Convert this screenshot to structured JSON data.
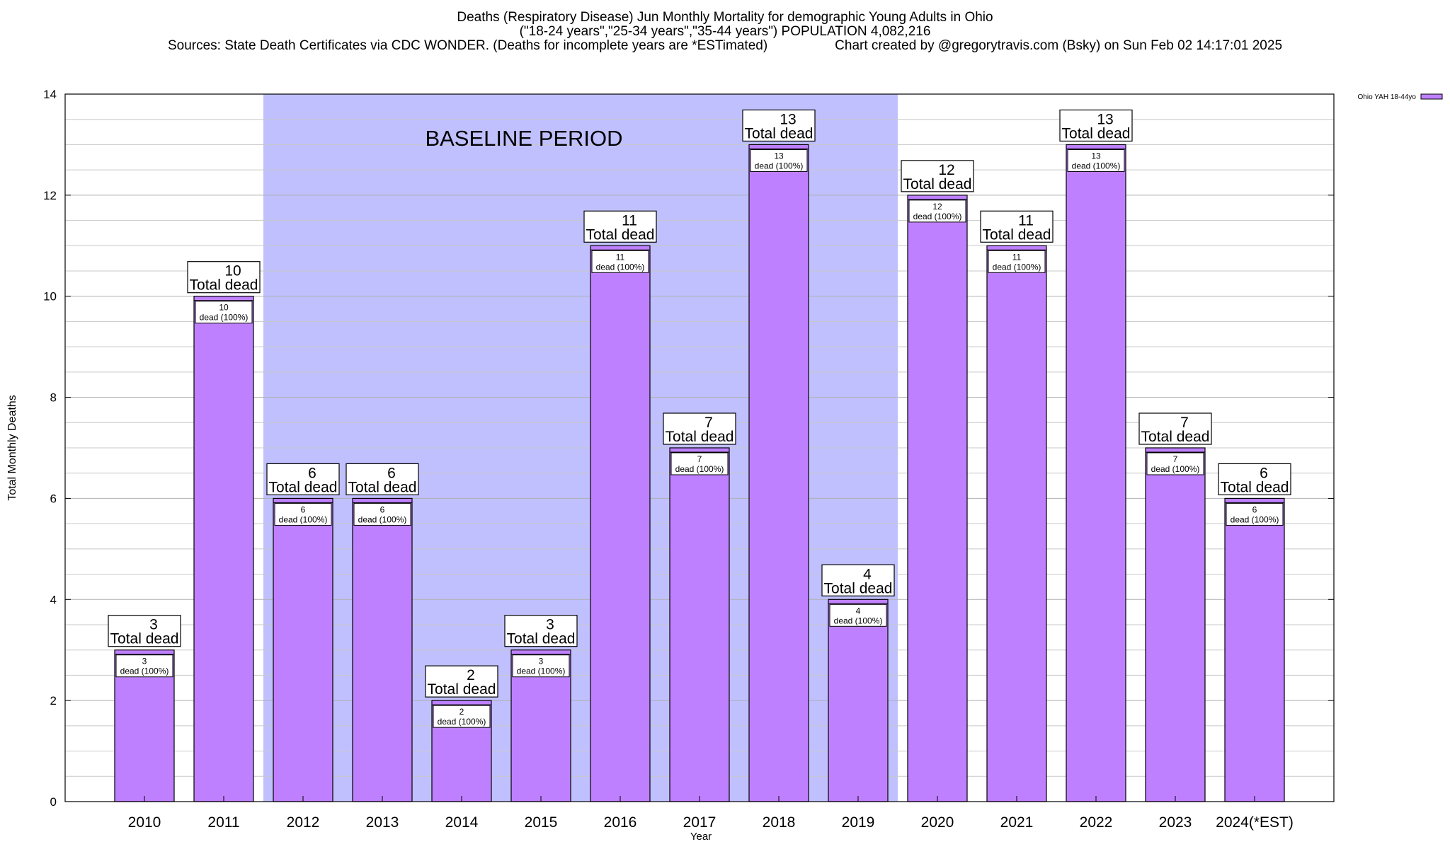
{
  "header": {
    "line1": "Deaths (Respiratory Disease) Jun Monthly Mortality for demographic Young Adults in Ohio",
    "line2": "(\"18-24 years\",\"25-34 years\",\"35-44 years\") POPULATION 4,082,216",
    "line3_left": "Sources: State Death Certificates via CDC WONDER. (Deaths for incomplete years are *ESTimated)",
    "line3_right": "Chart created by @gregorytravis.com (Bsky) on Sun Feb 02 14:17:01 2025"
  },
  "colors": {
    "bar_fill": "#bf80ff",
    "baseline_shade": "#c0c0ff",
    "grid": "#c8c8c8"
  },
  "chart_data": {
    "type": "bar",
    "title": "Deaths (Respiratory Disease) Jun Monthly Mortality for demographic Young Adults in Ohio",
    "xlabel": "Year",
    "ylabel": "Total Monthly Deaths",
    "ylim": [
      0,
      14
    ],
    "y_ticks": [
      0,
      2,
      4,
      6,
      8,
      10,
      12,
      14
    ],
    "grid": true,
    "legend_position": "top-right",
    "categories": [
      "2010",
      "2011",
      "2012",
      "2013",
      "2014",
      "2015",
      "2016",
      "2017",
      "2018",
      "2019",
      "2020",
      "2021",
      "2022",
      "2023",
      "2024(*EST)"
    ],
    "series": [
      {
        "name": "Ohio YAH 18-44yo",
        "values": [
          3,
          10,
          6,
          6,
          2,
          3,
          11,
          7,
          13,
          4,
          12,
          11,
          13,
          7,
          6
        ]
      }
    ],
    "total_label_text": "Total dead",
    "inner_label_text": "dead (100%)",
    "baseline_period": {
      "label": "BASELINE PERIOD",
      "from": "2012",
      "to": "2019"
    }
  }
}
